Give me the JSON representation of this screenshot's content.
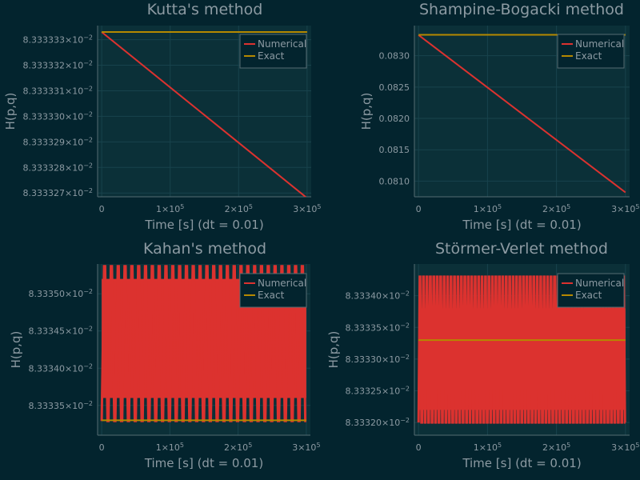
{
  "chart_data": [
    {
      "type": "line",
      "title": "Kutta's method",
      "xlabel": "Time [s] (dt = 0.01)",
      "ylabel": "H(p,q)",
      "xlim": [
        -6000,
        306000
      ],
      "ylim": [
        0.08333332685,
        0.08333333355
      ],
      "x_ticks": [
        {
          "value": 0,
          "mant": "0",
          "exp": ""
        },
        {
          "value": 100000,
          "mant": "1×10",
          "exp": "5"
        },
        {
          "value": 200000,
          "mant": "2×10",
          "exp": "5"
        },
        {
          "value": 300000,
          "mant": "3×10",
          "exp": "5"
        }
      ],
      "y_ticks": [
        {
          "value": 0.083333327,
          "mant": "8.333327×10",
          "exp": "−2"
        },
        {
          "value": 0.083333328,
          "mant": "8.333328×10",
          "exp": "−2"
        },
        {
          "value": 0.083333329,
          "mant": "8.333329×10",
          "exp": "−2"
        },
        {
          "value": 0.08333333,
          "mant": "8.333330×10",
          "exp": "−2"
        },
        {
          "value": 0.083333331,
          "mant": "8.333331×10",
          "exp": "−2"
        },
        {
          "value": 0.083333332,
          "mant": "8.333332×10",
          "exp": "−2"
        },
        {
          "value": 0.083333333,
          "mant": "8.333333×10",
          "exp": "−2"
        }
      ],
      "grid": true,
      "legend": "top-right",
      "series": [
        {
          "name": "Numerical",
          "color": "#dc322f",
          "x": [
            0,
            300000
          ],
          "y": [
            0.0833333333,
            0.0833333268
          ]
        },
        {
          "name": "Exact",
          "color": "#b58900",
          "x": [
            0,
            300000
          ],
          "y": [
            0.0833333333,
            0.0833333333
          ]
        }
      ]
    },
    {
      "type": "line",
      "title": "Shampine-Bogacki method",
      "xlabel": "Time [s] (dt = 0.01)",
      "ylabel": "H(p,q)",
      "xlim": [
        -6000,
        306000
      ],
      "ylim": [
        0.08075,
        0.08348
      ],
      "x_ticks": [
        {
          "value": 0,
          "mant": "0",
          "exp": ""
        },
        {
          "value": 100000,
          "mant": "1×10",
          "exp": "5"
        },
        {
          "value": 200000,
          "mant": "2×10",
          "exp": "5"
        },
        {
          "value": 300000,
          "mant": "3×10",
          "exp": "5"
        }
      ],
      "y_ticks": [
        {
          "value": 0.081,
          "mant": "0.0810",
          "exp": ""
        },
        {
          "value": 0.0815,
          "mant": "0.0815",
          "exp": ""
        },
        {
          "value": 0.082,
          "mant": "0.0820",
          "exp": ""
        },
        {
          "value": 0.0825,
          "mant": "0.0825",
          "exp": ""
        },
        {
          "value": 0.083,
          "mant": "0.0830",
          "exp": ""
        }
      ],
      "grid": true,
      "legend": "top-right",
      "series": [
        {
          "name": "Numerical",
          "color": "#dc322f",
          "x": [
            0,
            300000
          ],
          "y": [
            0.08333,
            0.08082
          ]
        },
        {
          "name": "Exact",
          "color": "#b58900",
          "x": [
            0,
            300000
          ],
          "y": [
            0.083333,
            0.083333
          ]
        }
      ]
    },
    {
      "type": "line",
      "title": "Kahan's method",
      "xlabel": "Time [s] (dt = 0.01)",
      "ylabel": "H(p,q)",
      "xlim": [
        -6000,
        306000
      ],
      "ylim": [
        0.0833331,
        0.0833354
      ],
      "x_ticks": [
        {
          "value": 0,
          "mant": "0",
          "exp": ""
        },
        {
          "value": 100000,
          "mant": "1×10",
          "exp": "5"
        },
        {
          "value": 200000,
          "mant": "2×10",
          "exp": "5"
        },
        {
          "value": 300000,
          "mant": "3×10",
          "exp": "5"
        }
      ],
      "y_ticks": [
        {
          "value": 0.0833335,
          "mant": "8.33335×10",
          "exp": "−2"
        },
        {
          "value": 0.083334,
          "mant": "8.33340×10",
          "exp": "−2"
        },
        {
          "value": 0.0833345,
          "mant": "8.33345×10",
          "exp": "−2"
        },
        {
          "value": 0.083335,
          "mant": "8.33350×10",
          "exp": "−2"
        }
      ],
      "grid": true,
      "legend": "top-right",
      "oscillation": {
        "x_range": [
          0,
          300000
        ],
        "cycles": 30,
        "upper": 0.08333537,
        "lower": 0.08333329,
        "band_upper": 0.0833352,
        "band_lower": 0.0833336
      },
      "series": [
        {
          "name": "Numerical",
          "color": "#dc322f"
        },
        {
          "name": "Exact",
          "color": "#b58900",
          "x": [
            0,
            300000
          ],
          "y": [
            0.0833333,
            0.0833333
          ]
        }
      ]
    },
    {
      "type": "line",
      "title": "Störmer-Verlet method",
      "xlabel": "Time [s] (dt = 0.01)",
      "ylabel": "H(p,q)",
      "xlim": [
        -6000,
        306000
      ],
      "ylim": [
        0.0833318,
        0.0833345
      ],
      "x_ticks": [
        {
          "value": 0,
          "mant": "0",
          "exp": ""
        },
        {
          "value": 100000,
          "mant": "1×10",
          "exp": "5"
        },
        {
          "value": 200000,
          "mant": "2×10",
          "exp": "5"
        },
        {
          "value": 300000,
          "mant": "3×10",
          "exp": "5"
        }
      ],
      "y_ticks": [
        {
          "value": 0.083332,
          "mant": "8.33320×10",
          "exp": "−2"
        },
        {
          "value": 0.0833325,
          "mant": "8.33325×10",
          "exp": "−2"
        },
        {
          "value": 0.083333,
          "mant": "8.33330×10",
          "exp": "−2"
        },
        {
          "value": 0.0833335,
          "mant": "8.33335×10",
          "exp": "−2"
        },
        {
          "value": 0.083334,
          "mant": "8.33340×10",
          "exp": "−2"
        }
      ],
      "grid": true,
      "legend": "top-right",
      "oscillation": {
        "x_range": [
          0,
          300000
        ],
        "cycles": 60,
        "upper": 0.0833343,
        "lower": 0.083332,
        "band_upper": 0.0833338,
        "band_lower": 0.0833322
      },
      "series": [
        {
          "name": "Numerical",
          "color": "#dc322f"
        },
        {
          "name": "Exact",
          "color": "#b58900",
          "x": [
            0,
            300000
          ],
          "y": [
            0.0833333,
            0.0833333
          ]
        }
      ]
    }
  ],
  "theme": {
    "background": "#03242e",
    "plot_background": "#0b3038",
    "grid_color": "#18434c",
    "text_color": "#8c9aa2",
    "legend_background": "#03242e",
    "legend_border": "#566b72"
  }
}
